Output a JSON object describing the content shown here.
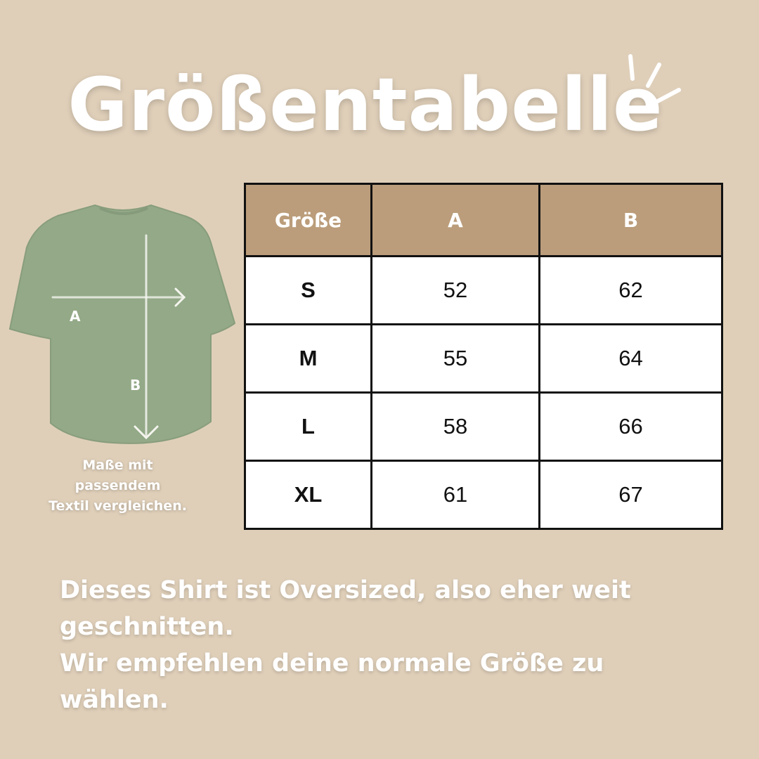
{
  "title": "Größentabelle",
  "diagram": {
    "label_a": "A",
    "label_b": "B",
    "shirt_color": "#93a987",
    "caption": [
      "Maße mit",
      "passendem",
      "Textil vergleichen."
    ]
  },
  "table": {
    "header_color": "#bb9d7b",
    "headers": [
      "Größe",
      "A",
      "B"
    ],
    "rows": [
      [
        "S",
        "52",
        "62"
      ],
      [
        "M",
        "55",
        "64"
      ],
      [
        "L",
        "58",
        "66"
      ],
      [
        "XL",
        "61",
        "67"
      ]
    ]
  },
  "note": {
    "line1": "Dieses Shirt ist Oversized, also eher weit geschnitten.",
    "line2": "Wir empfehlen deine normale Größe zu wählen."
  }
}
